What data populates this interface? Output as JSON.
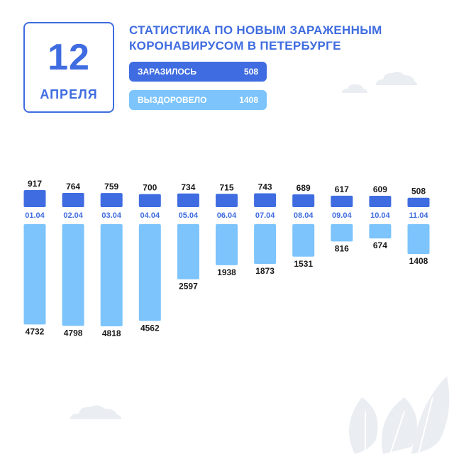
{
  "date": {
    "day": "12",
    "month": "АПРЕЛЯ"
  },
  "title": {
    "line1": "СТАТИСТИКА ПО НОВЫМ ЗАРАЖЕННЫМ",
    "line2": "КОРОНАВИРУСОМ В ПЕТЕРБУРГЕ"
  },
  "summary": {
    "infected_label": "ЗАРАЗИЛОСЬ",
    "infected_value": "508",
    "recovered_label": "ВЫЗДОРОВЕЛО",
    "recovered_value": "1408"
  },
  "colors": {
    "infected": "#3f6ce0",
    "recovered": "#7cc4fb",
    "date_label": "#3f6ce0",
    "value_label": "#1a1a1a",
    "decor": "#eaedf1"
  },
  "chart_data": {
    "type": "bar",
    "categories": [
      "01.04",
      "02.04",
      "03.04",
      "04.04",
      "05.04",
      "06.04",
      "07.04",
      "08.04",
      "09.04",
      "10.04",
      "11.04"
    ],
    "series": [
      {
        "name": "ЗАРАЗИЛОСЬ",
        "values": [
          917,
          764,
          759,
          700,
          734,
          715,
          743,
          689,
          617,
          609,
          508
        ]
      },
      {
        "name": "ВЫЗДОРОВЕЛО",
        "values": [
          4732,
          4798,
          4818,
          4562,
          2597,
          1938,
          1873,
          1531,
          816,
          674,
          1408
        ]
      }
    ],
    "title": "",
    "xlabel": "",
    "ylabel": "",
    "grid": false,
    "legend": "none"
  }
}
